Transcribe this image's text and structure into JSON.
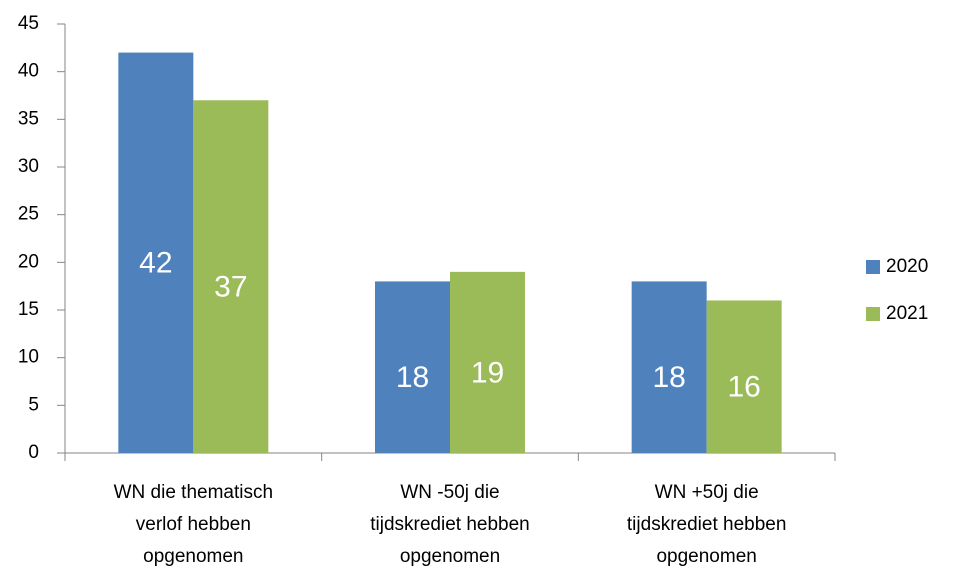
{
  "chart_data": {
    "type": "bar",
    "categories": [
      [
        "WN die thematisch",
        "verlof hebben",
        "opgenomen"
      ],
      [
        "WN -50j die",
        "tijdskrediet hebben",
        "opgenomen"
      ],
      [
        "WN +50j die",
        "tijdskrediet hebben",
        "opgenomen"
      ]
    ],
    "series": [
      {
        "name": "2020",
        "color": "#4f81bd",
        "values": [
          42,
          18,
          18
        ]
      },
      {
        "name": "2021",
        "color": "#9bbb59",
        "values": [
          37,
          19,
          16
        ]
      }
    ],
    "ylim": [
      0,
      45
    ],
    "yticks": [
      0,
      5,
      10,
      15,
      20,
      25,
      30,
      35,
      40,
      45
    ],
    "grid": false,
    "legend": "right",
    "data_labels": true
  }
}
